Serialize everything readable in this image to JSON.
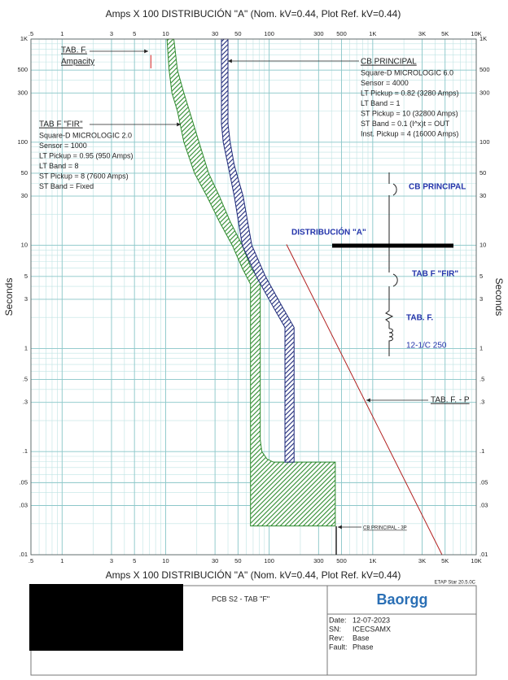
{
  "chart_data": {
    "type": "line",
    "xlabel": "Amps  X  100   DISTRIBUCIÓN \"A\" (Nom. kV=0.44, Plot Ref. kV=0.44)",
    "ylabel": "Seconds",
    "xlog": true,
    "ylog": true,
    "grid": true,
    "xlim": [
      0.5,
      10000
    ],
    "ylim": [
      0.01,
      1000
    ],
    "xticks": [
      {
        "value": 0.5,
        "label": ".5"
      },
      1,
      3,
      5,
      10,
      30,
      50,
      100,
      300,
      500,
      {
        "value": 1000,
        "label": "1K"
      },
      {
        "value": 3000,
        "label": "3K"
      },
      {
        "value": 5000,
        "label": "5K"
      },
      {
        "value": 10000,
        "label": "10K"
      }
    ],
    "yticks": [
      {
        "value": 0.01,
        "label": ".01"
      },
      {
        "value": 0.03,
        "label": ".03"
      },
      {
        "value": 0.05,
        "label": ".05"
      },
      {
        "value": 0.1,
        "label": ".1"
      },
      {
        "value": 0.3,
        "label": ".3"
      },
      {
        "value": 0.5,
        "label": ".5"
      },
      1,
      3,
      5,
      10,
      30,
      50,
      100,
      300,
      500,
      {
        "value": 1000,
        "label": "1K"
      }
    ],
    "series": [
      {
        "style": "band",
        "color": "#2e8b2e",
        "x": [
          10.3,
          10.8,
          11.5,
          13,
          15,
          19,
          25,
          33,
          44,
          55,
          66,
          66,
          435,
          435,
          110,
          95,
          85,
          82,
          82,
          67,
          55,
          42,
          33,
          26,
          21,
          17,
          15,
          13,
          12
        ],
        "values": [
          1000,
          500,
          300,
          200,
          100,
          50,
          30,
          17,
          10,
          6,
          4.2,
          0.019,
          0.019,
          0.079,
          0.079,
          0.085,
          0.1,
          0.13,
          4.5,
          6,
          10,
          17,
          30,
          50,
          100,
          200,
          300,
          500,
          1000
        ]
      },
      {
        "style": "band",
        "color": "#1f2a7a",
        "x": [
          34.6,
          34.6,
          36,
          40,
          46,
          55,
          75,
          110,
          142,
          142,
          174,
          174,
          135,
          92,
          68,
          56,
          46,
          42,
          40,
          40
        ],
        "values": [
          1000,
          150,
          100,
          60,
          30,
          10,
          5,
          2.5,
          1.6,
          0.079,
          0.079,
          1.6,
          2.5,
          5,
          10,
          30,
          60,
          100,
          150,
          1000
        ]
      },
      {
        "style": "line",
        "color": "#b22222",
        "x": [
          147,
          4670
        ],
        "values": [
          10.2,
          0.01
        ]
      },
      {
        "style": "line",
        "color": "#d62020",
        "x": [
          7.2,
          7.2
        ],
        "values": [
          700,
          520
        ]
      }
    ],
    "annotations": [
      {
        "title": "TAB. F.",
        "lines": [
          "Ampacity"
        ]
      },
      {
        "title": "CB PRINCIPAL",
        "lines": [
          "Square-D  MICROLOGIC 6.0",
          "Sensor = 4000",
          "LT Pickup = 0.82 (3280 Amps)",
          "LT Band = 1",
          "ST Pickup = 10 (32800 Amps)",
          "ST Band = 0.1  (I^x)t = OUT",
          "Inst. Pickup = 4 (16000 Amps)"
        ]
      },
      {
        "title": "TAB F \"FIR\"",
        "lines": [
          "Square-D  MICROLOGIC 2.0",
          "Sensor = 1000",
          "LT Pickup = 0.95 (950 Amps)",
          "LT Band = 8",
          "ST Pickup = 8 (7600 Amps)",
          "ST Band = Fixed"
        ]
      },
      {
        "title": "TAB. F. - P",
        "lines": []
      },
      {
        "title": "CB PRINCIPAL - 3P",
        "lines": []
      }
    ]
  },
  "one_line": {
    "labels": [
      "CB PRINCIPAL",
      "DISTRIBUCIÓN \"A\"",
      "TAB F \"FIR\"",
      "TAB. F.",
      "12-1/C 250"
    ]
  },
  "title_block": {
    "software": "ETAP Star 20.5.0C",
    "project": "PCB S2 - TAB \"F\"",
    "company": "Baorgg",
    "fields": [
      [
        "Date:",
        "12-07-2023"
      ],
      [
        "SN:",
        "ICECSAMX"
      ],
      [
        "Rev:",
        "Base"
      ],
      [
        "Fault:",
        "Phase"
      ]
    ]
  }
}
